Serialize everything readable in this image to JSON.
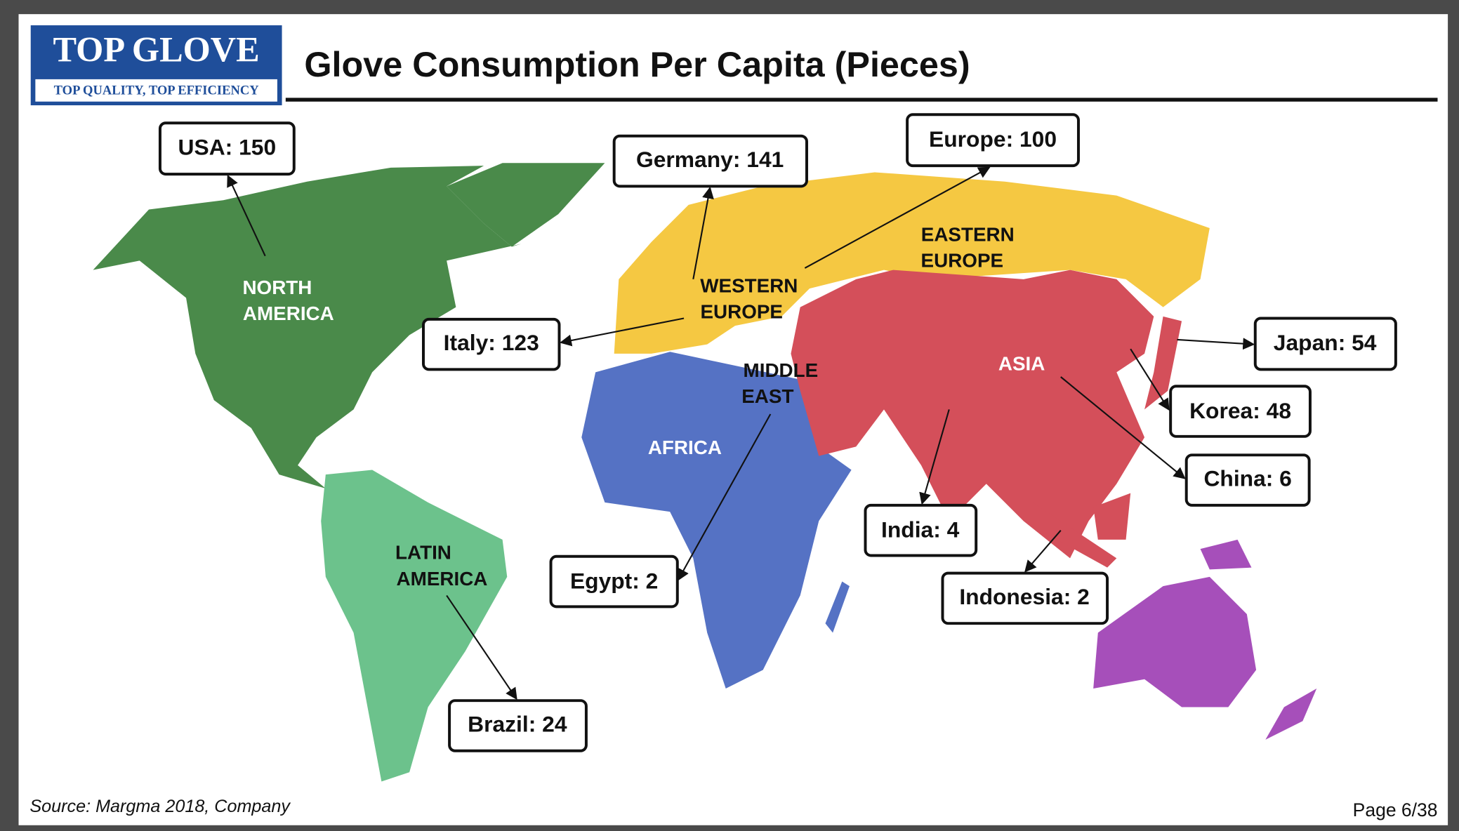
{
  "header": {
    "logo_title": "TOP GLOVE",
    "logo_subtitle": "TOP QUALITY, TOP EFFICIENCY",
    "title": "Glove Consumption Per Capita (Pieces)"
  },
  "regions": [
    {
      "lines": [
        "NORTH",
        "AMERICA"
      ]
    },
    {
      "lines": [
        "LATIN",
        "AMERICA"
      ]
    },
    {
      "lines": [
        "WESTERN",
        "EUROPE"
      ]
    },
    {
      "lines": [
        "EASTERN",
        "EUROPE"
      ]
    },
    {
      "lines": [
        "MIDDLE",
        "EAST"
      ]
    },
    {
      "lines": [
        "AFRICA"
      ]
    },
    {
      "lines": [
        "ASIA"
      ]
    }
  ],
  "callouts": [
    "USA: 150",
    "Germany: 141",
    "Europe: 100",
    "Italy: 123",
    "Japan: 54",
    "Korea: 48",
    "China: 6",
    "India: 4",
    "Indonesia: 2",
    "Egypt: 2",
    "Brazil: 24"
  ],
  "footer": {
    "source": "Source: Margma 2018, Company",
    "page": "Page 6/38"
  }
}
